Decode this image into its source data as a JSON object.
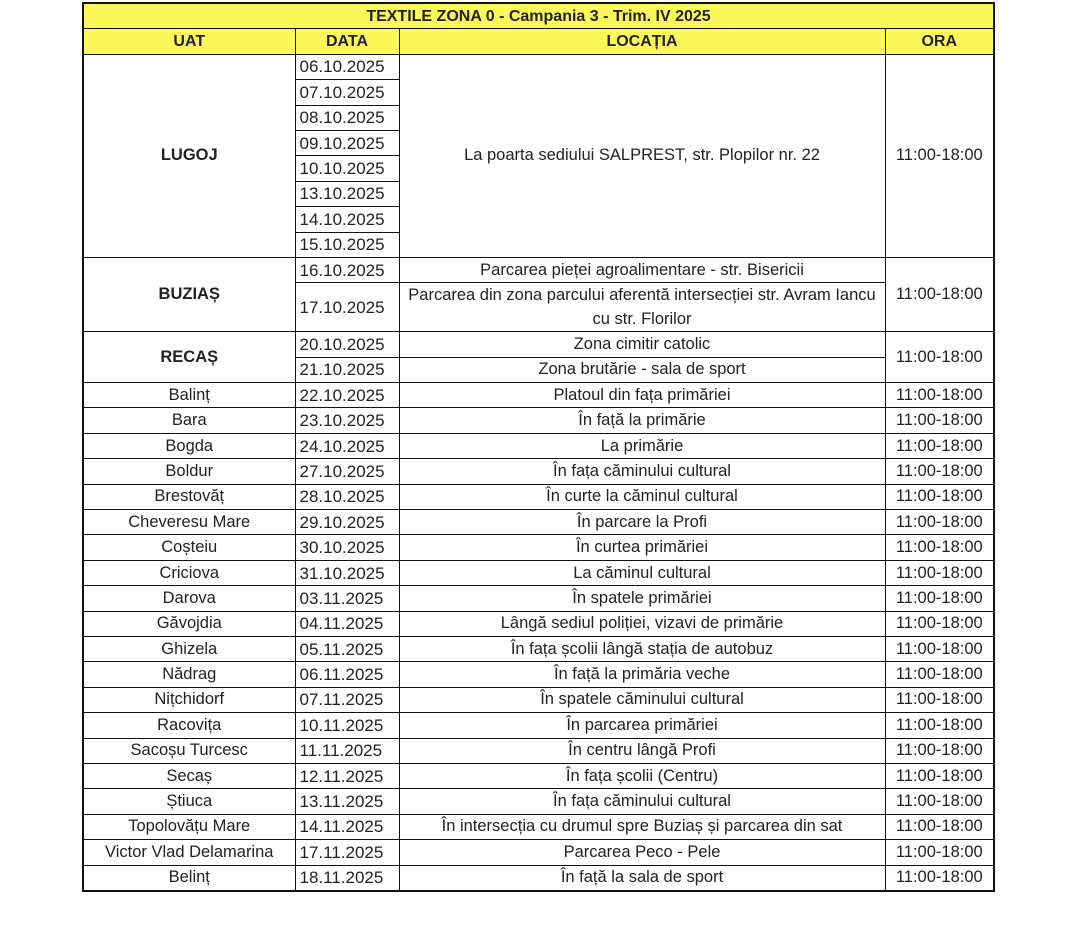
{
  "title": "TEXTILE ZONA 0 - Campania 3 - Trim. IV 2025",
  "headers": {
    "uat": "UAT",
    "data": "DATA",
    "locatia": "LOCAȚIA",
    "ora": "ORA"
  },
  "colors": {
    "header_bg": "#fbf95a",
    "border": "#111111"
  },
  "groups": [
    {
      "uat": "LUGOJ",
      "bold": true,
      "dates": [
        "06.10.2025",
        "07.10.2025",
        "08.10.2025",
        "09.10.2025",
        "10.10.2025",
        "13.10.2025",
        "14.10.2025",
        "15.10.2025"
      ],
      "locations": [
        "La poarta sediului SALPREST, str. Plopilor nr. 22"
      ],
      "time": "11:00-18:00"
    },
    {
      "uat": "BUZIAȘ",
      "bold": true,
      "dates": [
        "16.10.2025",
        "17.10.2025"
      ],
      "locations": [
        "Parcarea pieței agroalimentare - str. Bisericii",
        "Parcarea din zona parcului aferentă intersecției str. Avram Iancu cu str. Florilor"
      ],
      "time": "11:00-18:00"
    },
    {
      "uat": "RECAȘ",
      "bold": true,
      "dates": [
        "20.10.2025",
        "21.10.2025"
      ],
      "locations": [
        "Zona cimitir catolic",
        "Zona brutărie - sala de sport"
      ],
      "time": "11:00-18:00"
    },
    {
      "uat": "Balinț",
      "dates": [
        "22.10.2025"
      ],
      "locations": [
        "Platoul din fața primăriei"
      ],
      "time": "11:00-18:00"
    },
    {
      "uat": "Bara",
      "dates": [
        "23.10.2025"
      ],
      "locations": [
        "În față la primărie"
      ],
      "time": "11:00-18:00"
    },
    {
      "uat": "Bogda",
      "dates": [
        "24.10.2025"
      ],
      "locations": [
        "La primărie"
      ],
      "time": "11:00-18:00"
    },
    {
      "uat": "Boldur",
      "dates": [
        "27.10.2025"
      ],
      "locations": [
        "În fața căminului cultural"
      ],
      "time": "11:00-18:00"
    },
    {
      "uat": "Brestovăț",
      "dates": [
        "28.10.2025"
      ],
      "locations": [
        "În curte la căminul cultural"
      ],
      "time": "11:00-18:00"
    },
    {
      "uat": "Cheveresu Mare",
      "dates": [
        "29.10.2025"
      ],
      "locations": [
        "În parcare la Profi"
      ],
      "time": "11:00-18:00"
    },
    {
      "uat": "Coșteiu",
      "dates": [
        "30.10.2025"
      ],
      "locations": [
        "În curtea primăriei"
      ],
      "time": "11:00-18:00"
    },
    {
      "uat": "Criciova",
      "dates": [
        "31.10.2025"
      ],
      "locations": [
        "La căminul cultural"
      ],
      "time": "11:00-18:00"
    },
    {
      "uat": "Darova",
      "dates": [
        "03.11.2025"
      ],
      "locations": [
        "În spatele primăriei"
      ],
      "time": "11:00-18:00"
    },
    {
      "uat": "Găvojdia",
      "dates": [
        "04.11.2025"
      ],
      "locations": [
        "Lângă sediul poliției, vizavi de primărie"
      ],
      "time": "11:00-18:00"
    },
    {
      "uat": "Ghizela",
      "dates": [
        "05.11.2025"
      ],
      "locations": [
        "În fața școlii lângă stația de autobuz"
      ],
      "time": "11:00-18:00"
    },
    {
      "uat": "Nădrag",
      "dates": [
        "06.11.2025"
      ],
      "locations": [
        "În față la primăria veche"
      ],
      "time": "11:00-18:00"
    },
    {
      "uat": "Nițchidorf",
      "dates": [
        "07.11.2025"
      ],
      "locations": [
        "În spatele căminului cultural"
      ],
      "time": "11:00-18:00"
    },
    {
      "uat": "Racovița",
      "dates": [
        "10.11.2025"
      ],
      "locations": [
        "În parcarea primăriei"
      ],
      "time": "11:00-18:00"
    },
    {
      "uat": "Sacoșu Turcesc",
      "dates": [
        "11.11.2025"
      ],
      "locations": [
        "În centru lângă Profi"
      ],
      "time": "11:00-18:00"
    },
    {
      "uat": "Secaș",
      "dates": [
        "12.11.2025"
      ],
      "locations": [
        "În fața școlii (Centru)"
      ],
      "time": "11:00-18:00"
    },
    {
      "uat": "Știuca",
      "dates": [
        "13.11.2025"
      ],
      "locations": [
        "În fața căminului cultural"
      ],
      "time": "11:00-18:00"
    },
    {
      "uat": "Topolovățu Mare",
      "dates": [
        "14.11.2025"
      ],
      "locations": [
        "În intersecția cu drumul spre Buziaș și parcarea din sat"
      ],
      "time": "11:00-18:00"
    },
    {
      "uat": "Victor Vlad Delamarina",
      "dates": [
        "17.11.2025"
      ],
      "locations": [
        "Parcarea Peco - Pele"
      ],
      "time": "11:00-18:00"
    },
    {
      "uat": "Belinț",
      "dates": [
        "18.11.2025"
      ],
      "locations": [
        "În față la sala de sport"
      ],
      "time": "11:00-18:00"
    }
  ]
}
